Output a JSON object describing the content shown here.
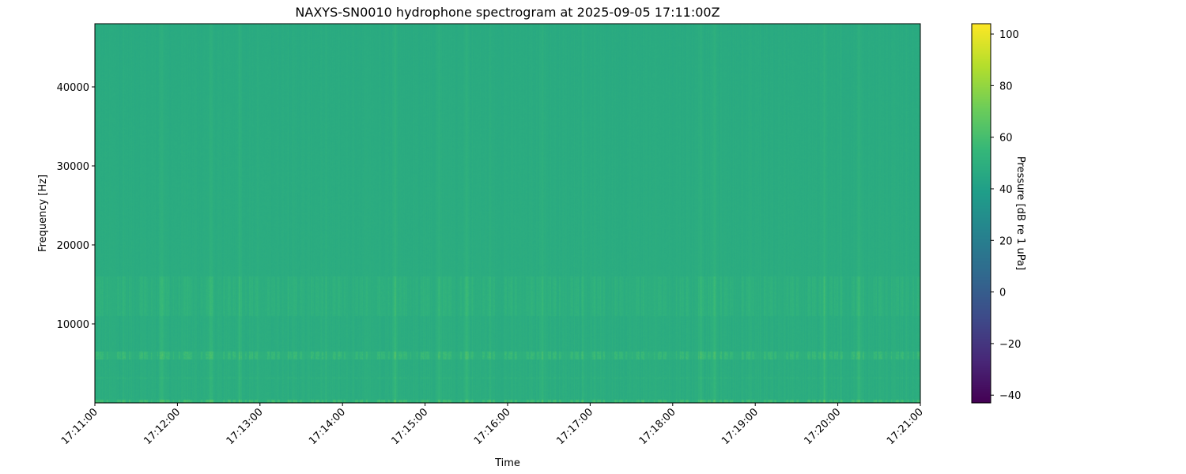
{
  "chart_data": {
    "type": "heatmap",
    "title": "NAXYS-SN0010 hydrophone spectrogram at 2025-09-05 17:11:00Z",
    "xlabel": "Time",
    "ylabel": "Frequency [Hz]",
    "x_ticks": [
      "17:11:00",
      "17:12:00",
      "17:13:00",
      "17:14:00",
      "17:15:00",
      "17:16:00",
      "17:17:00",
      "17:18:00",
      "17:19:00",
      "17:20:00",
      "17:21:00"
    ],
    "xlim": [
      "17:11:00",
      "17:21:00"
    ],
    "y_ticks": [
      10000,
      20000,
      30000,
      40000
    ],
    "ylim": [
      0,
      48000
    ],
    "colormap": "viridis",
    "colorbar": {
      "label": "Pressure [dB re 1 uPa]",
      "ticks": [
        -40,
        -20,
        0,
        20,
        40,
        60,
        80,
        100
      ],
      "range": [
        -43,
        104
      ]
    },
    "background_level_db": 47,
    "features": [
      {
        "kind": "band",
        "freq_hz": [
          5500,
          6500
        ],
        "level_db": 58
      },
      {
        "kind": "band",
        "freq_hz": [
          11000,
          16000
        ],
        "level_db": 52
      },
      {
        "kind": "band",
        "freq_hz": [
          0,
          400
        ],
        "level_db": 62
      },
      {
        "kind": "line",
        "freq_hz": [
          3000,
          3300
        ],
        "level_db": 51
      }
    ],
    "broadband_events": [
      "17:11:48",
      "17:12:24",
      "17:12:45",
      "17:14:38",
      "17:15:10",
      "17:15:30",
      "17:16:25",
      "17:18:20",
      "17:18:30",
      "17:19:50",
      "17:20:15"
    ]
  }
}
